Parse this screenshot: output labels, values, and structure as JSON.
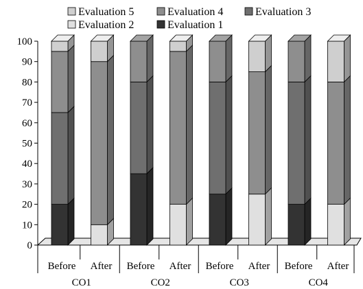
{
  "chart_data": {
    "type": "bar",
    "stacked": true,
    "three_d": true,
    "title": "",
    "xlabel": "",
    "ylabel": "",
    "ylim": [
      0,
      100
    ],
    "yticks": [
      0,
      10,
      20,
      30,
      40,
      50,
      60,
      70,
      80,
      90,
      100
    ],
    "grid": false,
    "legend_position": "top",
    "groups": [
      "CO1",
      "CO2",
      "CO3",
      "CO4"
    ],
    "categories": [
      "Before",
      "After",
      "Before",
      "After",
      "Before",
      "After",
      "Before",
      "After"
    ],
    "category_group_index": [
      0,
      0,
      1,
      1,
      2,
      2,
      3,
      3
    ],
    "series": [
      {
        "name": "Evaluation 1",
        "color": "#333333",
        "values": [
          20,
          0,
          35,
          0,
          25,
          0,
          20,
          0
        ]
      },
      {
        "name": "Evaluation 2",
        "color": "#e0e0e0",
        "values": [
          0,
          10,
          0,
          20,
          0,
          25,
          0,
          20
        ]
      },
      {
        "name": "Evaluation 3",
        "color": "#6f6f6f",
        "values": [
          45,
          0,
          45,
          0,
          55,
          0,
          60,
          0
        ]
      },
      {
        "name": "Evaluation 4",
        "color": "#8e8e8e",
        "values": [
          30,
          80,
          20,
          75,
          20,
          60,
          20,
          60
        ]
      },
      {
        "name": "Evaluation 5",
        "color": "#cfcfcf",
        "values": [
          5,
          10,
          0,
          5,
          0,
          15,
          0,
          20
        ]
      }
    ],
    "legend": {
      "row1": [
        "Evaluation 5",
        "Evaluation 4",
        "Evaluation 3"
      ],
      "row2": [
        "Evaluation 2",
        "Evaluation 1"
      ]
    }
  }
}
